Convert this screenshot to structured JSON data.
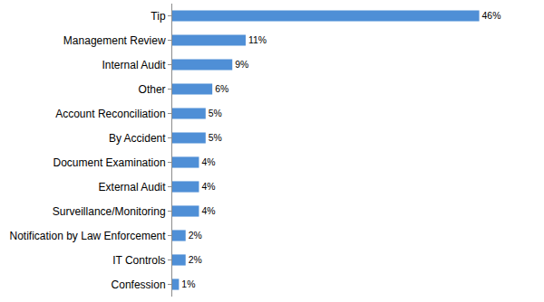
{
  "chart_data": {
    "type": "bar",
    "orientation": "horizontal",
    "categories": [
      "Tip",
      "Management Review",
      "Internal Audit",
      "Other",
      "Account Reconciliation",
      "By Accident",
      "Document Examination",
      "External Audit",
      "Surveillance/Monitoring",
      "Notification by Law Enforcement",
      "IT Controls",
      "Confession"
    ],
    "values": [
      46,
      11,
      9,
      6,
      5,
      5,
      4,
      4,
      4,
      2,
      2,
      1
    ],
    "value_labels": [
      "46%",
      "11%",
      "9%",
      "6%",
      "5%",
      "5%",
      "4%",
      "4%",
      "4%",
      "2%",
      "2%",
      "1%"
    ],
    "color": "#4f8fd6",
    "xlim": [
      0,
      50
    ],
    "grid": false,
    "data_labels": true,
    "tick_labels": "y"
  }
}
